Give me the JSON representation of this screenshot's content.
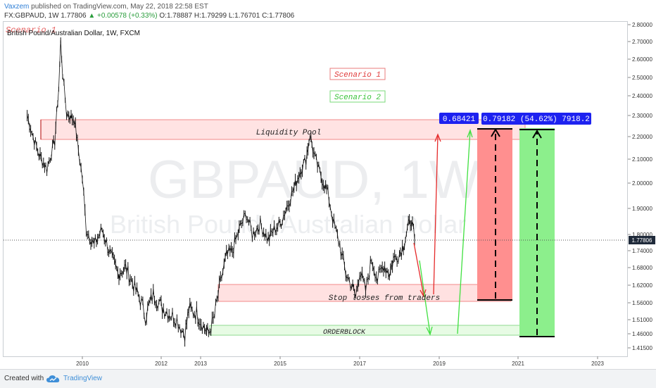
{
  "header": {
    "username": "Vaxzem",
    "published_text": "published on TradingView.com, May 22, 2018 22:58 EST",
    "symbol": "FX:GBPAUD, 1W",
    "price": "1.77806",
    "change": "▲ +0.00578 (+0.33%)",
    "ohlc": "O:1.78887 H:1.79299 L:1.76701 C:1.77806"
  },
  "chart_title": "British Pound/Australian Dollar, 1W, FXCM",
  "scenario_faded": "Scenario 1",
  "watermark": {
    "symbol": "GBPAUD, 1W",
    "name": "British Pound / Australian Dollar"
  },
  "annotations": {
    "scenario1": "Scenario 1",
    "scenario2": "Scenario 2",
    "liquidity_pool": "Liquidity Pool",
    "stop_losses": "Stop losses from traders",
    "orderblock": "ORDERBLOCK",
    "price_label": "0.68421",
    "measure_label": "0.79182 (54.62%) 7918.2"
  },
  "colors": {
    "scenario1": "#e03b3b",
    "scenario2": "#3bd13b",
    "candles": "#111111",
    "price_badge": "#1f2a3a",
    "measure_badge": "#1d22f0"
  },
  "footer": {
    "created_with": "Created with",
    "brand": "TradingView"
  },
  "chart_data": {
    "type": "line",
    "symbol": "GBPAUD",
    "interval": "1W",
    "last_price": 1.77806,
    "y_axis_ticks": [
      "2.80000",
      "2.70000",
      "2.60000",
      "2.50000",
      "2.40000",
      "2.30000",
      "2.20000",
      "2.10000",
      "2.00000",
      "1.90000",
      "1.80000",
      "1.74000",
      "1.68000",
      "1.62000",
      "1.56000",
      "1.51000",
      "1.46000",
      "1.41500"
    ],
    "x_axis_ticks": [
      "2010",
      "2012",
      "2013",
      "2015",
      "2017",
      "2019",
      "2021",
      "2023"
    ],
    "series": [
      {
        "values": [
          [
            2008.6,
            2.3
          ],
          [
            2008.75,
            2.2
          ],
          [
            2008.9,
            2.12
          ],
          [
            2009.1,
            2.06
          ],
          [
            2009.3,
            2.18
          ],
          [
            2009.4,
            2.44
          ],
          [
            2009.45,
            2.7
          ],
          [
            2009.5,
            2.52
          ],
          [
            2009.6,
            2.31
          ],
          [
            2009.8,
            2.28
          ],
          [
            2009.9,
            2.14
          ],
          [
            2010.0,
            2.02
          ],
          [
            2010.1,
            1.82
          ],
          [
            2010.3,
            1.76
          ],
          [
            2010.5,
            1.82
          ],
          [
            2010.7,
            1.73
          ],
          [
            2010.9,
            1.66
          ],
          [
            2011.1,
            1.68
          ],
          [
            2011.3,
            1.62
          ],
          [
            2011.5,
            1.56
          ],
          [
            2011.6,
            1.52
          ],
          [
            2011.8,
            1.59
          ],
          [
            2012.0,
            1.55
          ],
          [
            2012.2,
            1.53
          ],
          [
            2012.4,
            1.51
          ],
          [
            2012.5,
            1.48
          ],
          [
            2012.6,
            1.46
          ],
          [
            2012.7,
            1.54
          ],
          [
            2012.9,
            1.53
          ],
          [
            2013.1,
            1.48
          ],
          [
            2013.2,
            1.46
          ],
          [
            2013.35,
            1.52
          ],
          [
            2013.5,
            1.63
          ],
          [
            2013.65,
            1.72
          ],
          [
            2013.8,
            1.74
          ],
          [
            2014.0,
            1.83
          ],
          [
            2014.15,
            1.88
          ],
          [
            2014.3,
            1.8
          ],
          [
            2014.5,
            1.84
          ],
          [
            2014.7,
            1.78
          ],
          [
            2014.85,
            1.82
          ],
          [
            2015.0,
            1.84
          ],
          [
            2015.2,
            1.92
          ],
          [
            2015.35,
            1.98
          ],
          [
            2015.5,
            2.05
          ],
          [
            2015.65,
            2.1
          ],
          [
            2015.75,
            2.21
          ],
          [
            2015.85,
            2.12
          ],
          [
            2016.0,
            2.04
          ],
          [
            2016.2,
            1.96
          ],
          [
            2016.35,
            1.84
          ],
          [
            2016.5,
            1.76
          ],
          [
            2016.65,
            1.66
          ],
          [
            2016.8,
            1.62
          ],
          [
            2016.9,
            1.58
          ],
          [
            2017.0,
            1.67
          ],
          [
            2017.15,
            1.6
          ],
          [
            2017.3,
            1.71
          ],
          [
            2017.45,
            1.64
          ],
          [
            2017.6,
            1.69
          ],
          [
            2017.75,
            1.66
          ],
          [
            2017.85,
            1.71
          ],
          [
            2018.0,
            1.73
          ],
          [
            2018.1,
            1.76
          ],
          [
            2018.2,
            1.82
          ],
          [
            2018.3,
            1.86
          ],
          [
            2018.38,
            1.78
          ]
        ]
      }
    ]
  }
}
